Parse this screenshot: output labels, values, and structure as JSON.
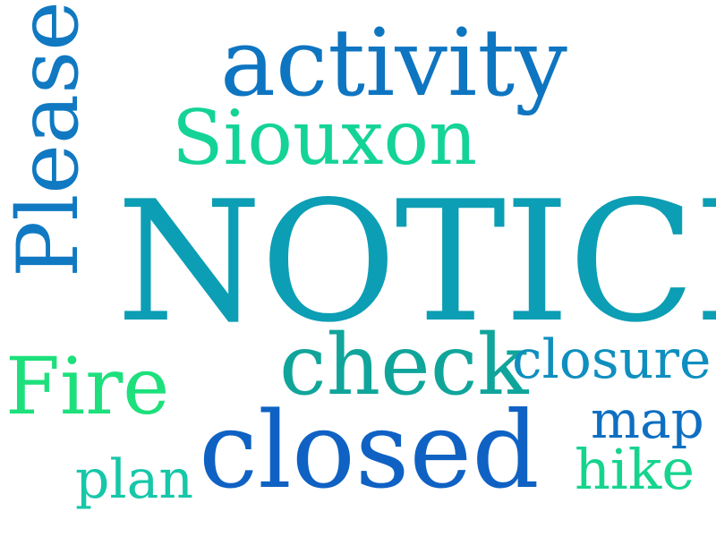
{
  "words": {
    "activity": {
      "text": "activity",
      "color": "#0e75c1"
    },
    "siouxon": {
      "text": "Siouxon",
      "color": "#14d396"
    },
    "notice": {
      "text": "NOTICE",
      "color": "#0c9eb4"
    },
    "please": {
      "text": "Please",
      "color": "#1079c2"
    },
    "check": {
      "text": "check",
      "color": "#10a59a"
    },
    "closure": {
      "text": "closure",
      "color": "#0e8fbf"
    },
    "fire": {
      "text": "Fire",
      "color": "#1de07c"
    },
    "closed": {
      "text": "closed",
      "color": "#0f62c4"
    },
    "map": {
      "text": "map",
      "color": "#0e6fc2"
    },
    "plan": {
      "text": "plan",
      "color": "#16c7a8"
    },
    "hike": {
      "text": "hike",
      "color": "#16d48e"
    }
  }
}
